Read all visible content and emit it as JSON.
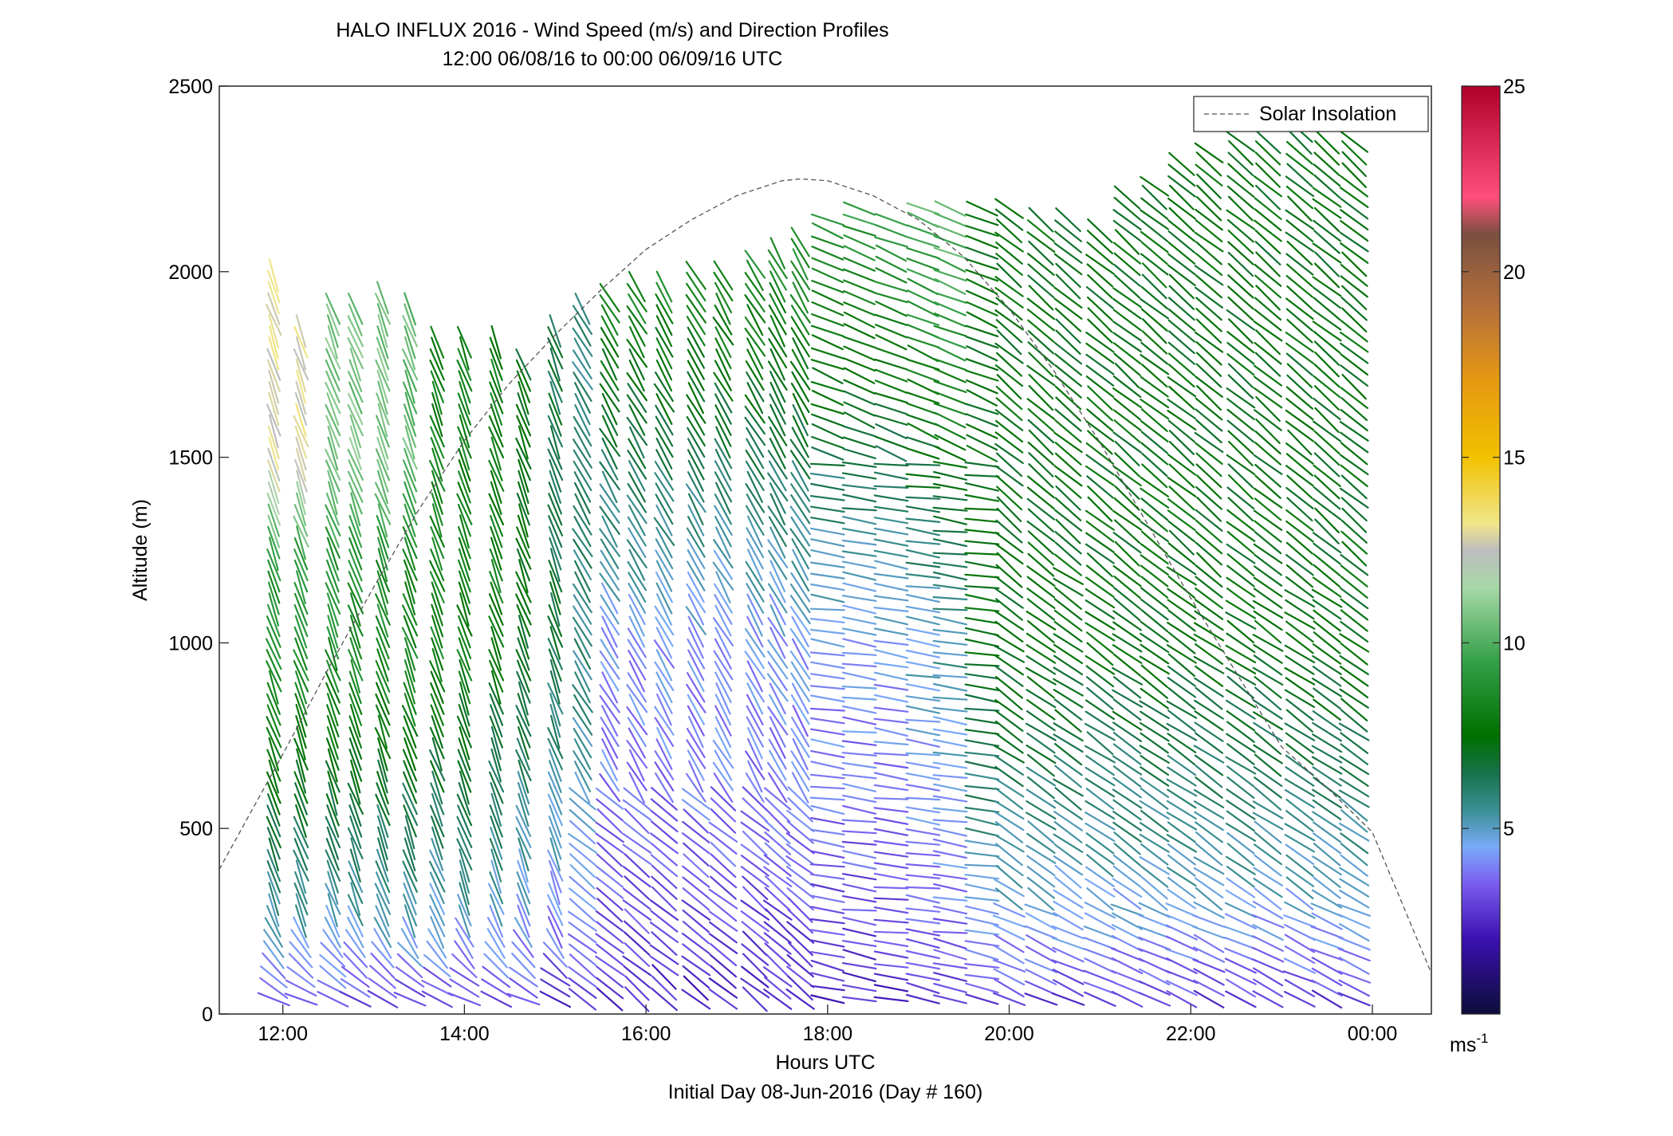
{
  "chart_data": {
    "type": "wind-barb-profile",
    "title": "HALO INFLUX 2016 - Wind Speed (m/s) and Direction Profiles",
    "subtitle": "12:00 06/08/16 to 00:00 06/09/16  UTC",
    "xlabel": "Hours UTC",
    "xlabel2": "Initial Day 08-Jun-2016 (Day # 160)",
    "ylabel": "Altitude (m)",
    "xlim": [
      11.3,
      24.65
    ],
    "ylim": [
      0,
      2500
    ],
    "xticks": [
      {
        "value": 12,
        "label": "12:00"
      },
      {
        "value": 14,
        "label": "14:00"
      },
      {
        "value": 16,
        "label": "16:00"
      },
      {
        "value": 18,
        "label": "18:00"
      },
      {
        "value": 20,
        "label": "20:00"
      },
      {
        "value": 22,
        "label": "22:00"
      },
      {
        "value": 24,
        "label": "00:00"
      }
    ],
    "yticks": [
      {
        "value": 0,
        "label": "0"
      },
      {
        "value": 500,
        "label": "500"
      },
      {
        "value": 1000,
        "label": "1000"
      },
      {
        "value": 1500,
        "label": "1500"
      },
      {
        "value": 2000,
        "label": "2000"
      },
      {
        "value": 2500,
        "label": "2500"
      }
    ],
    "legend": {
      "label": "Solar Insolation",
      "placement": "top-right"
    },
    "solar_insolation": {
      "x": [
        11.3,
        12.0,
        12.5,
        13.0,
        13.5,
        14.0,
        14.5,
        15.0,
        15.5,
        16.0,
        16.5,
        17.0,
        17.5,
        17.7,
        18.0,
        18.5,
        19.0,
        19.5,
        20.0,
        20.5,
        21.0,
        21.5,
        22.0,
        22.5,
        23.0,
        23.5,
        24.0,
        24.65
      ],
      "y": [
        390,
        700,
        930,
        1150,
        1360,
        1545,
        1700,
        1830,
        1950,
        2060,
        2140,
        2205,
        2245,
        2250,
        2245,
        2205,
        2140,
        2040,
        1900,
        1730,
        1540,
        1330,
        1120,
        920,
        720,
        610,
        490,
        110
      ]
    },
    "profiles": {
      "times": [
        11.9,
        12.2,
        12.55,
        12.8,
        13.1,
        13.4,
        13.7,
        14.0,
        14.35,
        14.65,
        15.0,
        15.3,
        15.6,
        15.9,
        16.2,
        16.55,
        16.85,
        17.2,
        17.45,
        17.7,
        18.0,
        18.35,
        18.7,
        19.05,
        19.35,
        19.7,
        20.0,
        20.35,
        20.65,
        21.0,
        21.3,
        21.6,
        21.9,
        22.2,
        22.55,
        22.85,
        23.2,
        23.5,
        23.8
      ],
      "tops": [
        1990,
        1840,
        1920,
        1920,
        1930,
        1920,
        1830,
        1830,
        1820,
        1760,
        1860,
        1900,
        1930,
        1960,
        1980,
        2010,
        1990,
        2020,
        2060,
        2100,
        2160,
        2170,
        2160,
        2180,
        2190,
        2180,
        2170,
        2150,
        2140,
        2130,
        2200,
        2230,
        2300,
        2330,
        2360,
        2370,
        2380,
        2360,
        2360
      ],
      "level_spacing_m": 30,
      "bottom_m": 40
    },
    "wind_model": {
      "speed_m_s": {
        "surface": 2,
        "morning_1000m": 9,
        "midday_1000m": 4.5,
        "evening_1000m": 7.5
      },
      "direction_note": "arrows point along wind vector; morning steep from north-west, afternoon near horizontal from east, evening steep from north-west"
    },
    "colorbar": {
      "min": 0,
      "max": 25,
      "ticks": [
        5,
        10,
        15,
        20,
        25
      ],
      "unit_label": "ms",
      "unit_exp": "-1",
      "stops": [
        {
          "v": 0,
          "c": "#0d0d3a"
        },
        {
          "v": 2,
          "c": "#3a10b0"
        },
        {
          "v": 3.5,
          "c": "#7a5cf0"
        },
        {
          "v": 4.5,
          "c": "#79aaf8"
        },
        {
          "v": 5.5,
          "c": "#3a8f94"
        },
        {
          "v": 6.5,
          "c": "#17724a"
        },
        {
          "v": 7.5,
          "c": "#007000"
        },
        {
          "v": 9.5,
          "c": "#33a048"
        },
        {
          "v": 11.5,
          "c": "#a8d8a8"
        },
        {
          "v": 12.5,
          "c": "#bdbdbd"
        },
        {
          "v": 13.2,
          "c": "#f0e68c"
        },
        {
          "v": 15,
          "c": "#f2c100"
        },
        {
          "v": 17,
          "c": "#e69a10"
        },
        {
          "v": 19,
          "c": "#b7703a"
        },
        {
          "v": 21,
          "c": "#7a5040"
        },
        {
          "v": 22,
          "c": "#ff4f7b"
        },
        {
          "v": 25,
          "c": "#b0002a"
        }
      ]
    }
  }
}
